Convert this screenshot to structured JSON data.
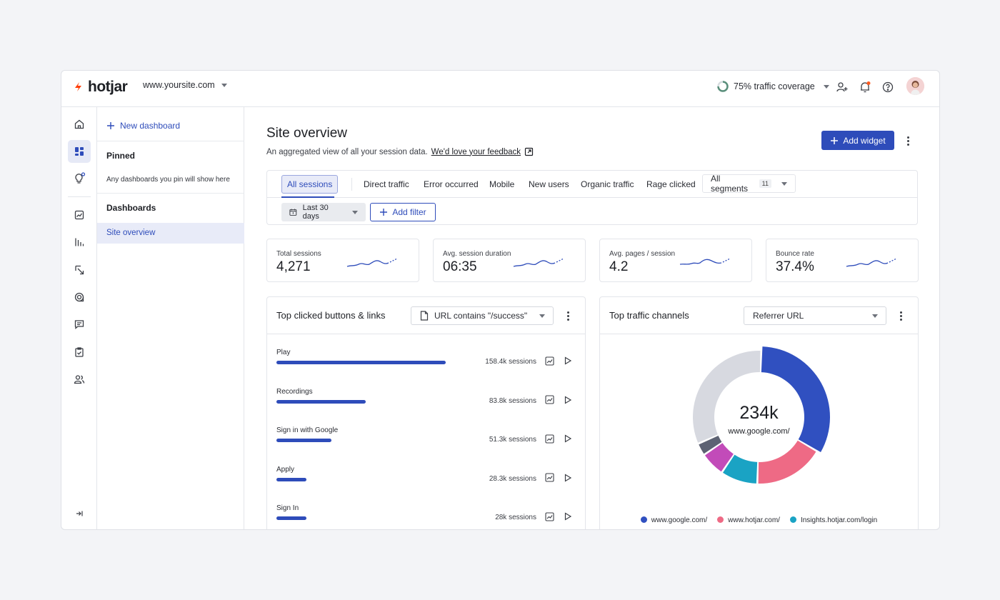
{
  "topbar": {
    "logo_text": "hotjar",
    "site": "www.yoursite.com",
    "coverage": "75% traffic coverage"
  },
  "sidebar": {
    "new_dashboard": "New dashboard",
    "pinned_heading": "Pinned",
    "pinned_note": "Any dashboards you pin will show here",
    "dashboards_heading": "Dashboards",
    "items": [
      {
        "label": "Site overview"
      }
    ]
  },
  "header": {
    "title": "Site overview",
    "subtitle": "An aggregated view of all your session data.",
    "feedback_link": "We'd love your feedback",
    "add_widget": "Add widget"
  },
  "segments": {
    "tabs": [
      {
        "label": "All sessions"
      },
      {
        "label": "Direct traffic"
      },
      {
        "label": "Error occurred"
      },
      {
        "label": "Mobile"
      },
      {
        "label": "New users"
      },
      {
        "label": "Organic traffic"
      },
      {
        "label": "Rage clicked"
      }
    ],
    "all_segments": "All segments",
    "all_segments_count": "11",
    "date_range": "Last 30 days",
    "add_filter": "Add filter"
  },
  "kpis": [
    {
      "label": "Total sessions",
      "value": "4,271"
    },
    {
      "label": "Avg. session duration",
      "value": "06:35"
    },
    {
      "label": "Avg. pages / session",
      "value": "4.2"
    },
    {
      "label": "Bounce rate",
      "value": "37.4%"
    }
  ],
  "clicked": {
    "title": "Top clicked buttons & links",
    "filter": "URL contains \"/success\"",
    "rows": [
      {
        "label": "Play",
        "sessions": "158.4k sessions",
        "value": 158.4
      },
      {
        "label": "Recordings",
        "sessions": "83.8k sessions",
        "value": 83.8
      },
      {
        "label": "Sign in with Google",
        "sessions": "51.3k sessions",
        "value": 51.3
      },
      {
        "label": "Apply",
        "sessions": "28.3k sessions",
        "value": 28.3
      },
      {
        "label": "Sign In",
        "sessions": "28k sessions",
        "value": 28
      }
    ]
  },
  "traffic": {
    "title": "Top traffic channels",
    "filter": "Referrer URL",
    "center_value": "234k",
    "center_label": "www.google.com/",
    "legend": [
      {
        "label": "www.google.com/",
        "color": "#3050c0"
      },
      {
        "label": "www.hotjar.com/",
        "color": "#ee6a85"
      },
      {
        "label": "Insights.hotjar.com/login",
        "color": "#1aa3c4"
      }
    ]
  },
  "chart_data": {
    "type": "pie",
    "values": [
      33,
      17,
      9,
      6,
      3,
      32
    ],
    "colors": [
      "#3050c0",
      "#ee6a85",
      "#1aa3c4",
      "#c24bb9",
      "#5d6273",
      "#d7d9e0"
    ]
  },
  "colors": {
    "accent": "#2e4cba",
    "brand": "#ff3c00"
  }
}
